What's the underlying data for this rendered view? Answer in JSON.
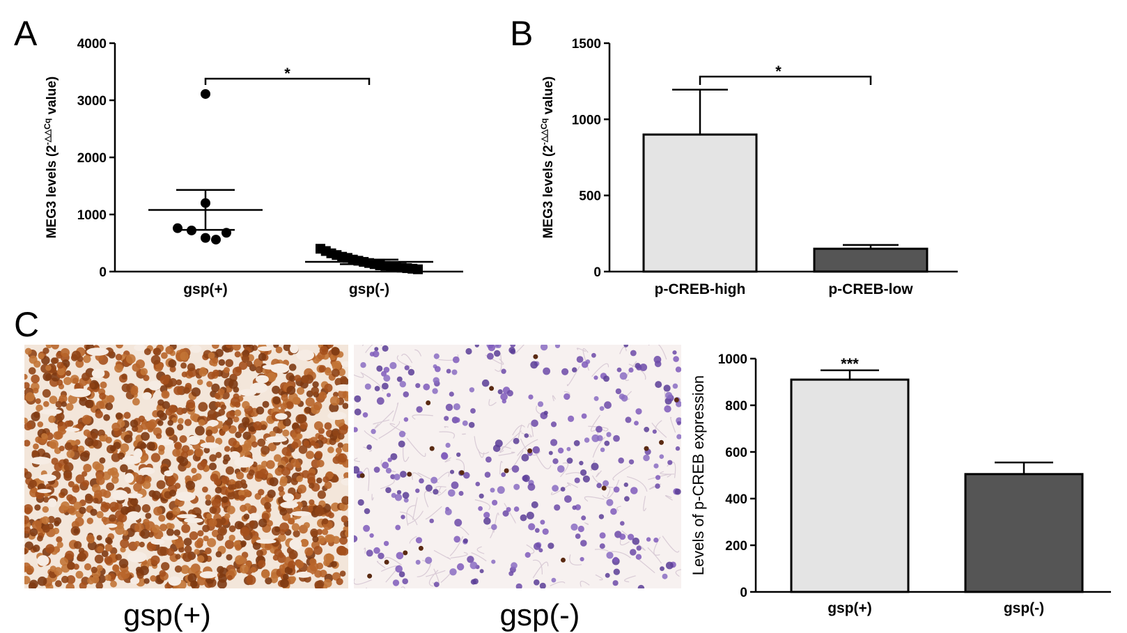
{
  "panels": {
    "a": "A",
    "b": "B",
    "c": "C"
  },
  "chart_data": [
    {
      "panel": "A",
      "type": "scatter",
      "ylabel": "MEG3 levels (2",
      "ylabel_sup": "-△△Cq",
      "ylabel_tail": " value)",
      "categories": [
        "gsp(+)",
        "gsp(-)"
      ],
      "ylim": [
        0,
        4000
      ],
      "yticks": [
        0,
        1000,
        2000,
        3000,
        4000
      ],
      "points": [
        {
          "category": "gsp(+)",
          "values": [
            3110,
            1200,
            760,
            720,
            680,
            590,
            560
          ]
        },
        {
          "category": "gsp(-)",
          "values": [
            400,
            360,
            320,
            290,
            260,
            240,
            210,
            190,
            170,
            150,
            130,
            110,
            100,
            90,
            80,
            70,
            60,
            50,
            40
          ]
        }
      ],
      "mean": [
        1080,
        170
      ],
      "sem": [
        350,
        40
      ],
      "significance": "*",
      "colors": {
        "marker": "#000000"
      }
    },
    {
      "panel": "B",
      "type": "bar",
      "ylabel": "MEG3 levels (2",
      "ylabel_sup": "-△△Cq",
      "ylabel_tail": " value)",
      "categories": [
        "p-CREB-high",
        "p-CREB-low"
      ],
      "values": [
        900,
        150
      ],
      "errors": [
        295,
        25
      ],
      "ylim": [
        0,
        1500
      ],
      "yticks": [
        0,
        500,
        1000,
        1500
      ],
      "significance": "*",
      "colors": {
        "bar1": "#e4e4e4",
        "bar2": "#555555"
      }
    },
    {
      "panel": "C",
      "type": "bar",
      "ylabel": "Levels of p-CREB expression",
      "categories": [
        "gsp(+)",
        "gsp(-)"
      ],
      "values": [
        910,
        505
      ],
      "errors": [
        40,
        50
      ],
      "ylim": [
        0,
        1000
      ],
      "yticks": [
        0,
        200,
        400,
        600,
        800,
        1000
      ],
      "significance": "***",
      "colors": {
        "bar1": "#e4e4e4",
        "bar2": "#555555"
      }
    }
  ],
  "micrographs": [
    {
      "caption": "gsp(+)",
      "stain": "brown-dense"
    },
    {
      "caption": "gsp(-)",
      "stain": "blue-sparse"
    }
  ]
}
